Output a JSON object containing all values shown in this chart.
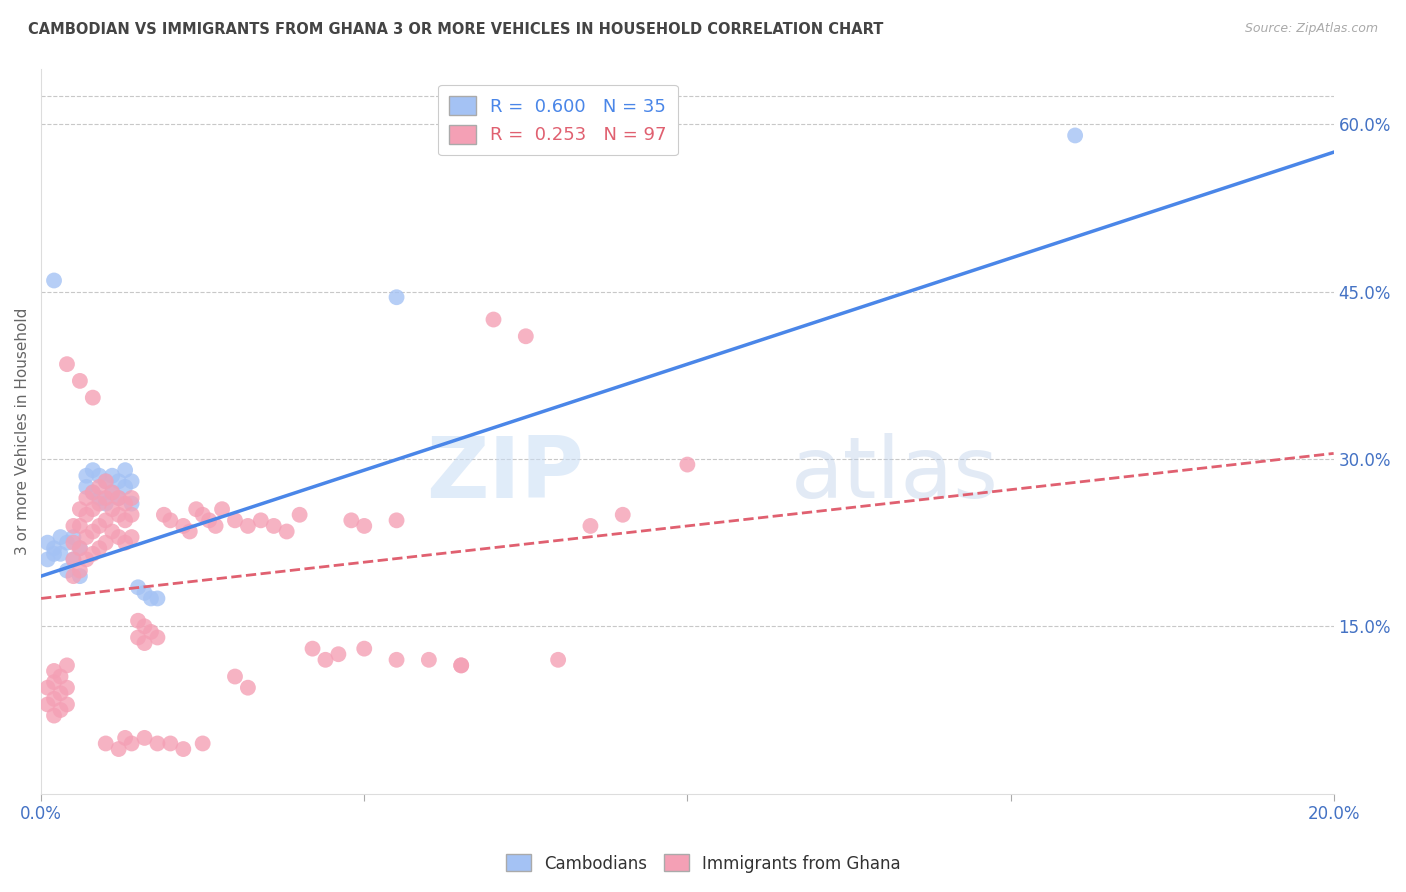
{
  "title": "CAMBODIAN VS IMMIGRANTS FROM GHANA 3 OR MORE VEHICLES IN HOUSEHOLD CORRELATION CHART",
  "source": "Source: ZipAtlas.com",
  "ylabel": "3 or more Vehicles in Household",
  "xmin": 0.0,
  "xmax": 0.2,
  "ymin": 0.0,
  "ymax": 0.65,
  "yticks_right": [
    0.15,
    0.3,
    0.45,
    0.6
  ],
  "ytick_right_labels": [
    "15.0%",
    "30.0%",
    "45.0%",
    "60.0%"
  ],
  "xticks": [
    0.0,
    0.05,
    0.1,
    0.15,
    0.2
  ],
  "xtick_labels": [
    "0.0%",
    "",
    "",
    "",
    "20.0%"
  ],
  "blue_color": "#a4c2f4",
  "pink_color": "#f4a0b5",
  "blue_line_color": "#4a86e8",
  "pink_line_color": "#e06070",
  "grid_color": "#c8c8c8",
  "title_color": "#444444",
  "source_color": "#aaaaaa",
  "axis_color": "#4472c4",
  "right_tick_color": "#4472c4",
  "blue_line_x0": 0.0,
  "blue_line_y0": 0.195,
  "blue_line_x1": 0.2,
  "blue_line_y1": 0.575,
  "pink_line_x0": 0.0,
  "pink_line_x1": 0.2,
  "pink_line_y0": 0.175,
  "pink_line_y1": 0.305,
  "cambodian_scatter": [
    [
      0.001,
      0.21
    ],
    [
      0.001,
      0.225
    ],
    [
      0.002,
      0.22
    ],
    [
      0.002,
      0.215
    ],
    [
      0.003,
      0.23
    ],
    [
      0.003,
      0.215
    ],
    [
      0.004,
      0.225
    ],
    [
      0.004,
      0.2
    ],
    [
      0.005,
      0.23
    ],
    [
      0.005,
      0.21
    ],
    [
      0.006,
      0.22
    ],
    [
      0.006,
      0.195
    ],
    [
      0.007,
      0.285
    ],
    [
      0.007,
      0.275
    ],
    [
      0.008,
      0.29
    ],
    [
      0.008,
      0.27
    ],
    [
      0.009,
      0.285
    ],
    [
      0.009,
      0.265
    ],
    [
      0.01,
      0.28
    ],
    [
      0.01,
      0.26
    ],
    [
      0.011,
      0.285
    ],
    [
      0.011,
      0.27
    ],
    [
      0.012,
      0.28
    ],
    [
      0.012,
      0.265
    ],
    [
      0.013,
      0.29
    ],
    [
      0.013,
      0.275
    ],
    [
      0.014,
      0.28
    ],
    [
      0.014,
      0.26
    ],
    [
      0.015,
      0.185
    ],
    [
      0.016,
      0.18
    ],
    [
      0.017,
      0.175
    ],
    [
      0.018,
      0.175
    ],
    [
      0.002,
      0.46
    ],
    [
      0.055,
      0.445
    ],
    [
      0.16,
      0.59
    ]
  ],
  "ghana_scatter": [
    [
      0.001,
      0.095
    ],
    [
      0.001,
      0.08
    ],
    [
      0.002,
      0.1
    ],
    [
      0.002,
      0.085
    ],
    [
      0.002,
      0.11
    ],
    [
      0.002,
      0.07
    ],
    [
      0.003,
      0.105
    ],
    [
      0.003,
      0.09
    ],
    [
      0.003,
      0.075
    ],
    [
      0.004,
      0.115
    ],
    [
      0.004,
      0.095
    ],
    [
      0.004,
      0.08
    ],
    [
      0.005,
      0.24
    ],
    [
      0.005,
      0.225
    ],
    [
      0.005,
      0.21
    ],
    [
      0.005,
      0.195
    ],
    [
      0.006,
      0.255
    ],
    [
      0.006,
      0.24
    ],
    [
      0.006,
      0.22
    ],
    [
      0.006,
      0.2
    ],
    [
      0.007,
      0.265
    ],
    [
      0.007,
      0.25
    ],
    [
      0.007,
      0.23
    ],
    [
      0.007,
      0.21
    ],
    [
      0.008,
      0.27
    ],
    [
      0.008,
      0.255
    ],
    [
      0.008,
      0.235
    ],
    [
      0.008,
      0.215
    ],
    [
      0.009,
      0.275
    ],
    [
      0.009,
      0.26
    ],
    [
      0.009,
      0.24
    ],
    [
      0.009,
      0.22
    ],
    [
      0.01,
      0.28
    ],
    [
      0.01,
      0.265
    ],
    [
      0.01,
      0.245
    ],
    [
      0.01,
      0.225
    ],
    [
      0.011,
      0.27
    ],
    [
      0.011,
      0.255
    ],
    [
      0.011,
      0.235
    ],
    [
      0.012,
      0.265
    ],
    [
      0.012,
      0.25
    ],
    [
      0.012,
      0.23
    ],
    [
      0.013,
      0.26
    ],
    [
      0.013,
      0.245
    ],
    [
      0.013,
      0.225
    ],
    [
      0.014,
      0.265
    ],
    [
      0.014,
      0.25
    ],
    [
      0.014,
      0.23
    ],
    [
      0.015,
      0.155
    ],
    [
      0.015,
      0.14
    ],
    [
      0.016,
      0.15
    ],
    [
      0.016,
      0.135
    ],
    [
      0.017,
      0.145
    ],
    [
      0.018,
      0.14
    ],
    [
      0.019,
      0.25
    ],
    [
      0.02,
      0.245
    ],
    [
      0.022,
      0.24
    ],
    [
      0.023,
      0.235
    ],
    [
      0.024,
      0.255
    ],
    [
      0.025,
      0.25
    ],
    [
      0.026,
      0.245
    ],
    [
      0.027,
      0.24
    ],
    [
      0.028,
      0.255
    ],
    [
      0.03,
      0.245
    ],
    [
      0.032,
      0.24
    ],
    [
      0.034,
      0.245
    ],
    [
      0.036,
      0.24
    ],
    [
      0.038,
      0.235
    ],
    [
      0.04,
      0.25
    ],
    [
      0.042,
      0.13
    ],
    [
      0.044,
      0.12
    ],
    [
      0.046,
      0.125
    ],
    [
      0.048,
      0.245
    ],
    [
      0.05,
      0.24
    ],
    [
      0.055,
      0.245
    ],
    [
      0.06,
      0.12
    ],
    [
      0.065,
      0.115
    ],
    [
      0.07,
      0.425
    ],
    [
      0.075,
      0.41
    ],
    [
      0.08,
      0.12
    ],
    [
      0.085,
      0.24
    ],
    [
      0.09,
      0.25
    ],
    [
      0.03,
      0.105
    ],
    [
      0.032,
      0.095
    ],
    [
      0.01,
      0.045
    ],
    [
      0.012,
      0.04
    ],
    [
      0.013,
      0.05
    ],
    [
      0.014,
      0.045
    ],
    [
      0.016,
      0.05
    ],
    [
      0.018,
      0.045
    ],
    [
      0.02,
      0.045
    ],
    [
      0.022,
      0.04
    ],
    [
      0.025,
      0.045
    ],
    [
      0.004,
      0.385
    ],
    [
      0.006,
      0.37
    ],
    [
      0.008,
      0.355
    ],
    [
      0.1,
      0.295
    ],
    [
      0.05,
      0.13
    ],
    [
      0.055,
      0.12
    ],
    [
      0.065,
      0.115
    ]
  ]
}
